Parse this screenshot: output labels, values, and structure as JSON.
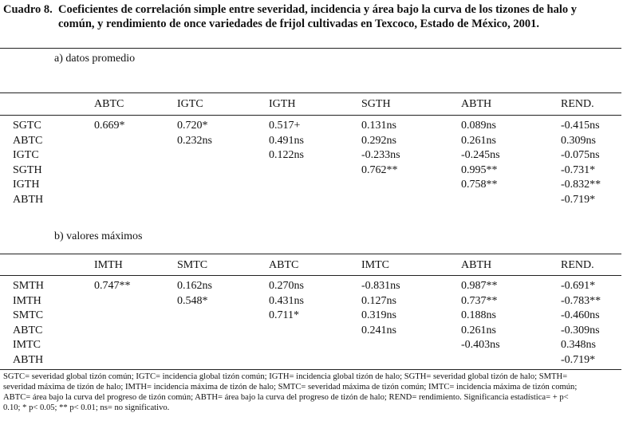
{
  "title": {
    "label": "Cuadro 8.",
    "line1": "Coeficientes de correlación simple entre severidad, incidencia y área bajo la curva de los tizones de halo y",
    "line2": "común, y rendimiento de once variedades de frijol cultivadas en Texcoco, Estado de México, 2001."
  },
  "section_a": {
    "subtitle": "a)   datos promedio",
    "headers": [
      "ABTC",
      "IGTC",
      "IGTH",
      "SGTH",
      "ABTH",
      "REND."
    ],
    "rows": [
      {
        "label": "SGTC",
        "cells": [
          "0.669*",
          "0.720*",
          "0.517+",
          "0.131ns",
          "0.089ns",
          "-0.415ns"
        ]
      },
      {
        "label": "ABTC",
        "cells": [
          "",
          "0.232ns",
          "0.491ns",
          "0.292ns",
          "0.261ns",
          "0.309ns"
        ]
      },
      {
        "label": "IGTC",
        "cells": [
          "",
          "",
          "0.122ns",
          "-0.233ns",
          "-0.245ns",
          "-0.075ns"
        ]
      },
      {
        "label": "SGTH",
        "cells": [
          "",
          "",
          "",
          "0.762**",
          "0.995**",
          "-0.731*"
        ]
      },
      {
        "label": "IGTH",
        "cells": [
          "",
          "",
          "",
          "",
          "0.758**",
          "-0.832**"
        ]
      },
      {
        "label": "ABTH",
        "cells": [
          "",
          "",
          "",
          "",
          "",
          "-0.719*"
        ]
      }
    ]
  },
  "section_b": {
    "subtitle": "b)   valores máximos",
    "headers": [
      "IMTH",
      "SMTC",
      "ABTC",
      "IMTC",
      "ABTH",
      "REND."
    ],
    "rows": [
      {
        "label": "SMTH",
        "cells": [
          "0.747**",
          "0.162ns",
          "0.270ns",
          "-0.831ns",
          "0.987**",
          "-0.691*"
        ]
      },
      {
        "label": "IMTH",
        "cells": [
          "",
          "0.548*",
          "0.431ns",
          "0.127ns",
          "0.737**",
          "-0.783**"
        ]
      },
      {
        "label": "SMTC",
        "cells": [
          "",
          "",
          "0.711*",
          "0.319ns",
          "0.188ns",
          "-0.460ns"
        ]
      },
      {
        "label": "ABTC",
        "cells": [
          "",
          "",
          "",
          "0.241ns",
          "0.261ns",
          "-0.309ns"
        ]
      },
      {
        "label": "IMTC",
        "cells": [
          "",
          "",
          "",
          "",
          "-0.403ns",
          "0.348ns"
        ]
      },
      {
        "label": "ABTH",
        "cells": [
          "",
          "",
          "",
          "",
          "",
          "-0.719*"
        ]
      }
    ]
  },
  "footnote": {
    "line1": "SGTC= severidad global tizón común; IGTC= incidencia global tizón común; IGTH= incidencia global tizón de halo; SGTH= severidad global tizón de halo; SMTH=",
    "line2": "severidad máxima de tizón de halo; IMTH= incidencia máxima de tizón de halo; SMTC= severidad máxima de tizón común; IMTC= incidencia máxima de tizón común;",
    "line3": "ABTC= área bajo la curva del progreso de tizón común; ABTH= área bajo la curva del progreso de tizón de halo; REND= rendimiento. Significancia estadística= + p<",
    "line4": "0.10; * p< 0.05; ** p< 0.01; ns= no significativo."
  }
}
